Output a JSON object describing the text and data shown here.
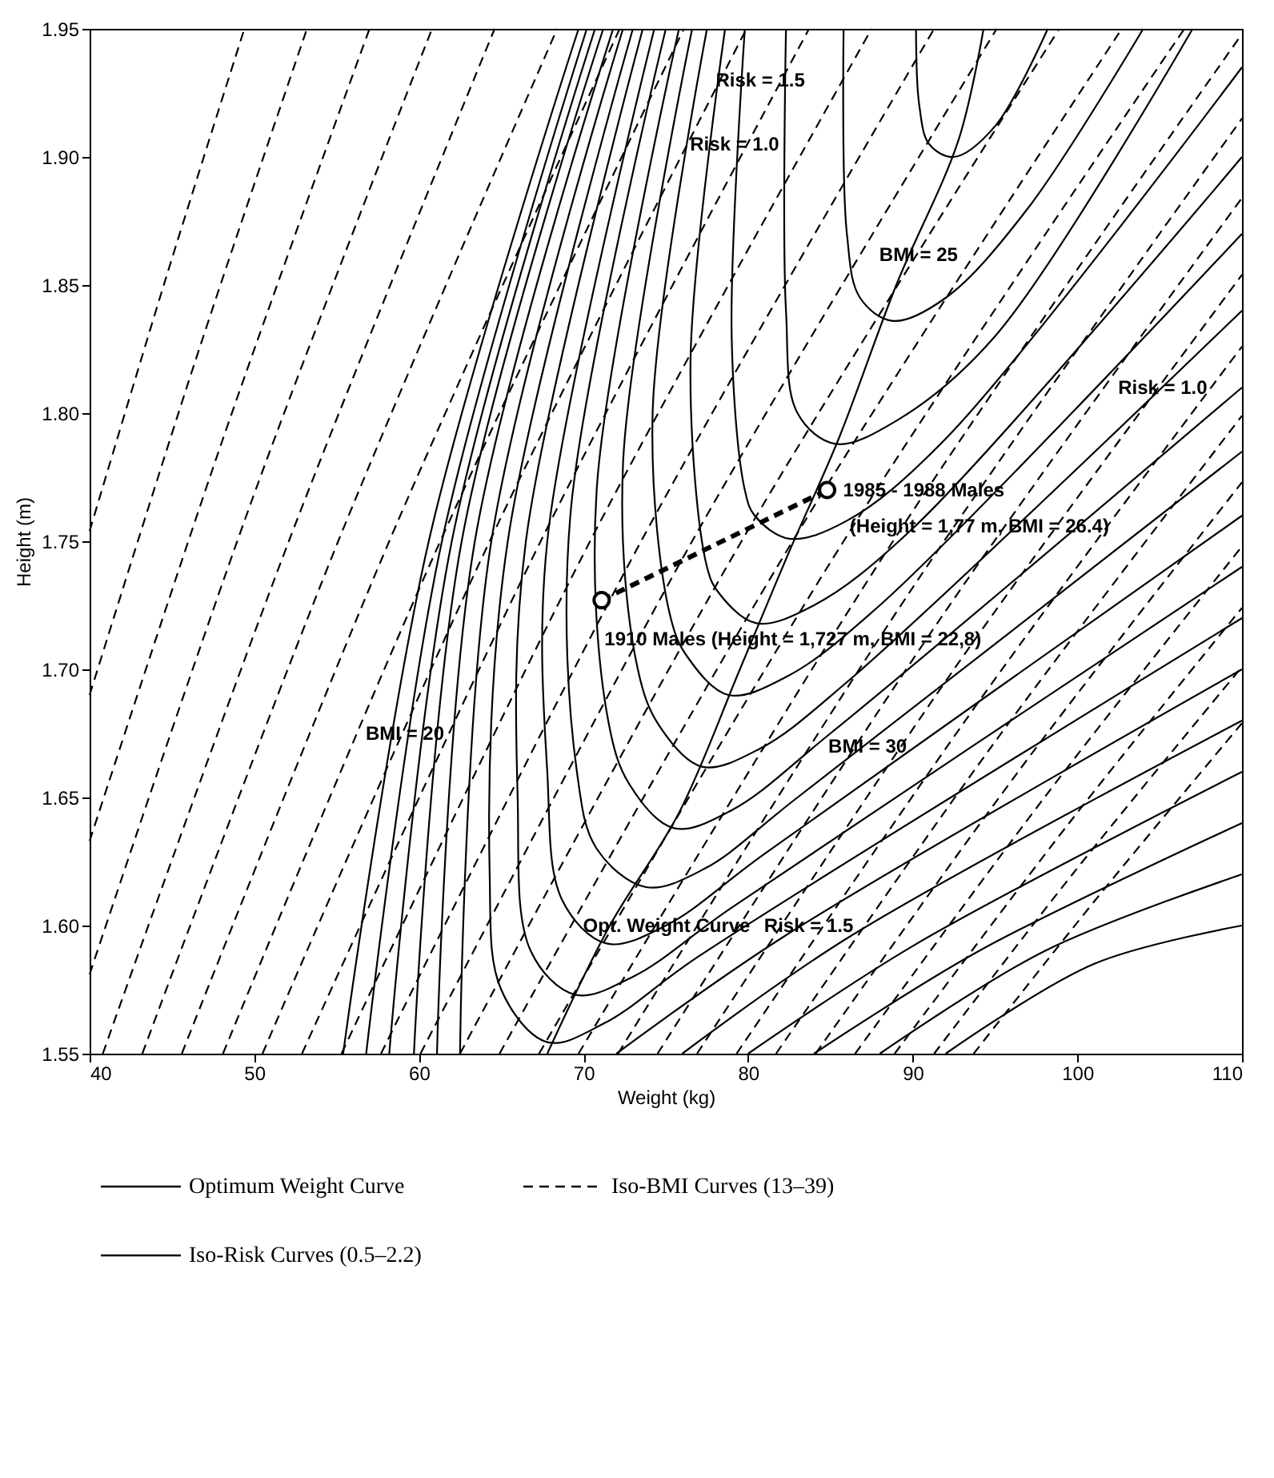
{
  "chart_data": {
    "type": "line",
    "xlabel": "Weight (kg)",
    "ylabel": "Height (m)",
    "xlim": [
      40,
      110
    ],
    "ylim": [
      1.55,
      1.95
    ],
    "xticks": [
      40,
      50,
      60,
      70,
      80,
      90,
      100,
      110
    ],
    "yticks": [
      1.55,
      {
        "value": 1.6,
        "label": "1.60"
      },
      1.65,
      {
        "value": 1.7,
        "label": "1.70"
      },
      1.75,
      {
        "value": 1.8,
        "label": "1.80"
      },
      1.85,
      {
        "value": 1.9,
        "label": "1.90"
      },
      1.95
    ],
    "legend": "bottom",
    "series": [
      {
        "name": "Optimum Weight Curve",
        "color": "#000000",
        "line_style": "solid",
        "x": [
          67.8,
          71.6,
          75.8,
          79.5,
          82.5,
          85.5,
          89,
          92.8,
          94.3
        ],
        "values": [
          1.55,
          1.6,
          1.644,
          1.7,
          1.746,
          1.79,
          1.85,
          1.907,
          1.95
        ]
      },
      {
        "name": "Iso-Risk Curves (0.5–2.2)",
        "color": "#000000",
        "line_style": "solid",
        "x": [
          90.2,
          90.4,
          91.0,
          92.5,
          95,
          98.2
        ],
        "values": [
          1.95,
          1.92,
          1.905,
          1.9,
          1.912,
          1.95
        ]
      },
      {
        "color": "#000000",
        "line_style": "solid",
        "x": [
          85.8,
          86.0,
          86.8,
          88.8,
          92,
          97,
          104
        ],
        "values": [
          1.95,
          1.87,
          1.845,
          1.836,
          1.845,
          1.88,
          1.95
        ]
      },
      {
        "color": "#000000",
        "line_style": "solid",
        "x": [
          82.3,
          82.3,
          83.0,
          85.3,
          89,
          95,
          107
        ],
        "values": [
          1.95,
          1.84,
          1.8,
          1.788,
          1.797,
          1.83,
          1.95
        ]
      },
      {
        "color": "#000000",
        "line_style": "solid",
        "x": [
          79.8,
          79.0,
          79.8,
          80.4,
          82.5,
          86,
          92,
          110
        ],
        "values": [
          1.95,
          1.83,
          1.77,
          1.76,
          1.751,
          1.758,
          1.79,
          1.935
        ]
      },
      {
        "color": "#000000",
        "line_style": "solid",
        "x": [
          78.6,
          76.5,
          77.5,
          78.2,
          80.5,
          84,
          90,
          110
        ],
        "values": [
          1.95,
          1.82,
          1.74,
          1.73,
          1.718,
          1.725,
          1.755,
          1.9
        ]
      },
      {
        "color": "#000000",
        "line_style": "solid",
        "x": [
          77.5,
          74.2,
          75.3,
          76.3,
          78.8,
          82.3,
          88,
          110
        ],
        "values": [
          1.95,
          1.8,
          1.72,
          1.705,
          1.69,
          1.697,
          1.725,
          1.87
        ]
      },
      {
        "color": "#000000",
        "line_style": "solid",
        "x": [
          76.6,
          72.4,
          73.3,
          74.6,
          77.2,
          80.7,
          86,
          110
        ],
        "values": [
          1.95,
          1.78,
          1.7,
          1.678,
          1.662,
          1.669,
          1.695,
          1.84
        ]
      },
      {
        "color": "#000000",
        "line_style": "solid",
        "x": [
          75.8,
          70.8,
          71.5,
          72.8,
          75.5,
          79,
          85,
          110
        ],
        "values": [
          1.95,
          1.77,
          1.68,
          1.655,
          1.638,
          1.645,
          1.675,
          1.81
        ]
      },
      {
        "color": "#000000",
        "line_style": "solid",
        "x": [
          75.0,
          69.2,
          69.6,
          70.8,
          73.8,
          77.3,
          83,
          110
        ],
        "values": [
          1.95,
          1.76,
          1.66,
          1.63,
          1.615,
          1.622,
          1.65,
          1.785
        ]
      },
      {
        "color": "#000000",
        "line_style": "solid",
        "x": [
          74.3,
          67.8,
          67.8,
          68.7,
          71.4,
          75,
          81,
          110
        ],
        "values": [
          1.95,
          1.75,
          1.66,
          1.61,
          1.593,
          1.6,
          1.628,
          1.76
        ]
      },
      {
        "color": "#000000",
        "line_style": "solid",
        "x": [
          73.6,
          66.5,
          66.0,
          66.8,
          69.5,
          73,
          79,
          110
        ],
        "values": [
          1.95,
          1.75,
          1.65,
          1.59,
          1.573,
          1.58,
          1.607,
          1.74
        ]
      },
      {
        "color": "#000000",
        "line_style": "solid",
        "x": [
          73.0,
          65.4,
          64.3,
          65.0,
          67.8,
          71.3,
          77,
          110
        ],
        "values": [
          1.95,
          1.75,
          1.62,
          1.575,
          1.5545,
          1.562,
          1.588,
          1.72
        ]
      },
      {
        "color": "#000000",
        "line_style": "solid",
        "x": [
          72.4,
          64.4,
          62.5,
          null,
          72,
          82,
          110
        ],
        "values": [
          1.95,
          1.75,
          1.55,
          null,
          1.55,
          1.595,
          1.7
        ]
      },
      {
        "color": "#000000",
        "line_style": "solid",
        "x": [
          71.8,
          63.4,
          61.1,
          null,
          76,
          86,
          110
        ],
        "values": [
          1.95,
          1.75,
          1.55,
          null,
          1.55,
          1.595,
          1.68
        ]
      },
      {
        "color": "#000000",
        "line_style": "solid",
        "x": [
          71.2,
          62.6,
          59.7,
          null,
          80,
          90,
          110
        ],
        "values": [
          1.95,
          1.75,
          1.55,
          null,
          1.55,
          1.592,
          1.66
        ]
      },
      {
        "color": "#000000",
        "line_style": "solid",
        "x": [
          70.7,
          62.0,
          58.2,
          null,
          84,
          94,
          110
        ],
        "values": [
          1.95,
          1.75,
          1.55,
          null,
          1.55,
          1.59,
          1.64
        ]
      },
      {
        "color": "#000000",
        "line_style": "solid",
        "x": [
          70.2,
          61.4,
          56.8,
          null,
          88,
          98,
          110
        ],
        "values": [
          1.95,
          1.75,
          1.55,
          null,
          1.55,
          1.59,
          1.62
        ]
      },
      {
        "color": "#000000",
        "line_style": "solid",
        "x": [
          69.7,
          60.6,
          55.4,
          null,
          92,
          101,
          110
        ],
        "values": [
          1.95,
          1.75,
          1.55,
          null,
          1.55,
          1.585,
          1.6
        ]
      },
      {
        "name": "Iso-BMI Curves (13–39)",
        "color": "#000000",
        "line_style": "dashed",
        "x": [
          40.0,
          44.6,
          49.4
        ],
        "values": [
          1.754,
          1.852,
          1.95
        ]
      },
      {
        "color": "#000000",
        "line_style": "dashed",
        "x": [
          40.0,
          46.4,
          53.2
        ],
        "values": [
          1.69,
          1.82,
          1.95
        ]
      },
      {
        "color": "#000000",
        "line_style": "dashed",
        "x": [
          40.0,
          48.1,
          57.0
        ],
        "values": [
          1.633,
          1.79,
          1.95
        ]
      },
      {
        "color": "#000000",
        "line_style": "dashed",
        "x": [
          40.0,
          49.8,
          60.8
        ],
        "values": [
          1.581,
          1.765,
          1.95
        ]
      },
      {
        "color": "#000000",
        "line_style": "dashed",
        "x": [
          40.8,
          52.1,
          64.6
        ],
        "values": [
          1.55,
          1.75,
          1.95
        ]
      },
      {
        "color": "#000000",
        "line_style": "dashed",
        "x": [
          43.2,
          55.1,
          68.4
        ],
        "values": [
          1.55,
          1.75,
          1.95
        ]
      },
      {
        "color": "#000000",
        "line_style": "dashed",
        "x": [
          45.6,
          58.2,
          72.2
        ],
        "values": [
          1.55,
          1.75,
          1.95
        ]
      },
      {
        "color": "#000000",
        "line_style": "dashed",
        "x": [
          48.1,
          61.3,
          76.1
        ],
        "values": [
          1.55,
          1.75,
          1.95
        ]
      },
      {
        "color": "#000000",
        "line_style": "dashed",
        "x": [
          50.5,
          64.3,
          79.9
        ],
        "values": [
          1.55,
          1.75,
          1.95
        ]
      },
      {
        "color": "#000000",
        "line_style": "dashed",
        "x": [
          52.9,
          67.4,
          83.7
        ],
        "values": [
          1.55,
          1.75,
          1.95
        ]
      },
      {
        "color": "#000000",
        "line_style": "dashed",
        "x": [
          55.3,
          70.4,
          87.5
        ],
        "values": [
          1.55,
          1.75,
          1.95
        ]
      },
      {
        "color": "#000000",
        "line_style": "dashed",
        "x": [
          57.7,
          73.5,
          91.3
        ],
        "values": [
          1.55,
          1.75,
          1.95
        ]
      },
      {
        "color": "#000000",
        "line_style": "dashed",
        "x": [
          60.1,
          76.6,
          95.1
        ],
        "values": [
          1.55,
          1.75,
          1.95
        ]
      },
      {
        "color": "#000000",
        "line_style": "dashed",
        "x": [
          62.5,
          79.6,
          98.9
        ],
        "values": [
          1.55,
          1.75,
          1.95
        ]
      },
      {
        "color": "#000000",
        "line_style": "dashed",
        "x": [
          64.9,
          82.7,
          102.7
        ],
        "values": [
          1.55,
          1.75,
          1.95
        ]
      },
      {
        "color": "#000000",
        "line_style": "dashed",
        "x": [
          67.3,
          85.8,
          106.5
        ],
        "values": [
          1.55,
          1.75,
          1.95
        ]
      },
      {
        "color": "#000000",
        "line_style": "dashed",
        "x": [
          69.7,
          88.8,
          110
        ],
        "values": [
          1.55,
          1.75,
          1.948
        ]
      },
      {
        "color": "#000000",
        "line_style": "dashed",
        "x": [
          72.1,
          89.8,
          110
        ],
        "values": [
          1.55,
          1.73,
          1.915
        ]
      },
      {
        "color": "#000000",
        "line_style": "dashed",
        "x": [
          74.5,
          91.7,
          110
        ],
        "values": [
          1.55,
          1.72,
          1.884
        ]
      },
      {
        "color": "#000000",
        "line_style": "dashed",
        "x": [
          76.9,
          92.5,
          110
        ],
        "values": [
          1.55,
          1.7,
          1.854
        ]
      },
      {
        "color": "#000000",
        "line_style": "dashed",
        "x": [
          79.3,
          94.3,
          110
        ],
        "values": [
          1.55,
          1.69,
          1.826
        ]
      },
      {
        "color": "#000000",
        "line_style": "dashed",
        "x": [
          81.7,
          94.8,
          110
        ],
        "values": [
          1.55,
          1.67,
          1.799
        ]
      },
      {
        "color": "#000000",
        "line_style": "dashed",
        "x": [
          84.1,
          96.4,
          110
        ],
        "values": [
          1.55,
          1.66,
          1.773
        ]
      },
      {
        "color": "#000000",
        "line_style": "dashed",
        "x": [
          86.5,
          98.0,
          110
        ],
        "values": [
          1.55,
          1.65,
          1.748
        ]
      },
      {
        "color": "#000000",
        "line_style": "dashed",
        "x": [
          88.9,
          99.5,
          110
        ],
        "values": [
          1.55,
          1.64,
          1.724
        ]
      },
      {
        "color": "#000000",
        "line_style": "dashed",
        "x": [
          91.3,
          99.7,
          110
        ],
        "values": [
          1.55,
          1.62,
          1.701
        ]
      },
      {
        "color": "#000000",
        "line_style": "dashed",
        "x": [
          93.7,
          101.1,
          110
        ],
        "values": [
          1.55,
          1.61,
          1.679
        ]
      },
      {
        "color": "#000000",
        "line_style": "dashed",
        "marker": "circle",
        "x": [
          71.1,
          84.8
        ],
        "values": [
          1.727,
          1.77
        ]
      }
    ],
    "annotations": [
      {
        "text": "1985 - 1988 Males",
        "x": 84.8,
        "y": 1.77
      },
      {
        "text": "(Height = 1,77 m, BMI = 26.4)",
        "x": 85.2,
        "y": 1.756
      },
      {
        "text": "1910 Males  (Height = 1,727 m, BMI = 22,8)",
        "x": 70.3,
        "y": 1.712
      },
      {
        "text": "Risk = 1.5",
        "x": 77.06,
        "y": 1.93
      },
      {
        "text": "Risk = 1.0",
        "x": 75.5,
        "y": 1.905
      },
      {
        "text": "BMI = 25",
        "x": 87.0,
        "y": 1.862
      },
      {
        "text": "Risk = 1.0",
        "x": 101.5,
        "y": 1.81
      },
      {
        "text": "BMI = 20",
        "x": 55.8,
        "y": 1.675
      },
      {
        "text": "BMI = 30",
        "x": 83.9,
        "y": 1.67
      },
      {
        "text": "Risk = 1.5",
        "x": 80,
        "y": 1.6
      },
      {
        "text": "Opt. Weight Curve",
        "x": 69.0,
        "y": 1.6
      }
    ]
  }
}
